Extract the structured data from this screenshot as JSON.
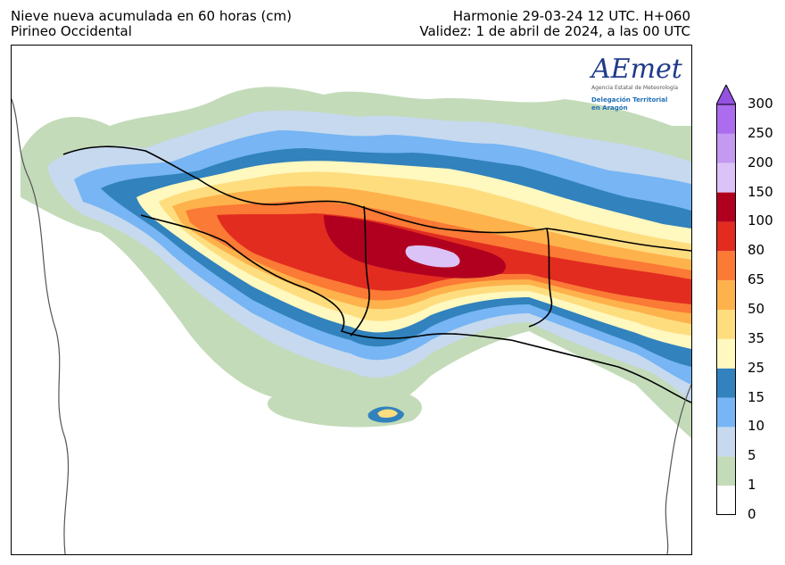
{
  "header": {
    "title_left_line1": "Nieve nueva acumulada en 60 horas (cm)",
    "title_left_line2": "Pirineo Occidental",
    "title_right_line1": "Harmonie 29-03-24 12 UTC. H+060",
    "title_right_line2": "Validez: 1 de abril de 2024, a las 00 UTC"
  },
  "logo": {
    "name": "AEmet",
    "subtitle": "Agencia Estatal de Meteorología",
    "delegation_line1": "Delegación Territorial",
    "delegation_line2": "en Aragón"
  },
  "legend": {
    "ticks": [
      "0",
      "1",
      "5",
      "10",
      "15",
      "25",
      "35",
      "50",
      "65",
      "80",
      "100",
      "150",
      "200",
      "250",
      "300"
    ],
    "colors": [
      "#ffffff",
      "#c3dbb9",
      "#c6d9ee",
      "#77b5f4",
      "#3182bd",
      "#fff8bf",
      "#fedd7f",
      "#feb24c",
      "#fb7a35",
      "#e22c20",
      "#b1001f",
      "#dcc3f7",
      "#c499f0",
      "#ab6cee",
      "#9452e0"
    ],
    "extend_arrow": "top"
  }
}
